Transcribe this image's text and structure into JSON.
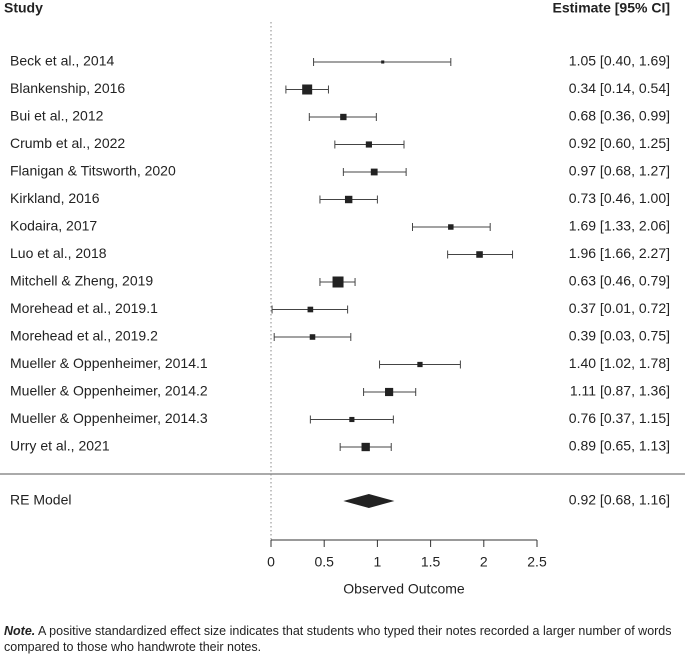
{
  "chart_data": {
    "type": "forest",
    "columns": {
      "study": "Study",
      "estimate": "Estimate [95% CI]"
    },
    "categories": [
      "Beck et al., 2014",
      "Blankenship, 2016",
      "Bui et al., 2012",
      "Crumb et al., 2022",
      "Flanigan & Titsworth, 2020",
      "Kirkland, 2016",
      "Kodaira, 2017",
      "Luo et al., 2018",
      "Mitchell & Zheng, 2019",
      "Morehead et al., 2019.1",
      "Morehead et al., 2019.2",
      "Mueller & Oppenheimer, 2014.1",
      "Mueller & Oppenheimer, 2014.2",
      "Mueller & Oppenheimer, 2014.3",
      "Urry et al., 2021"
    ],
    "values": [
      1.05,
      0.34,
      0.68,
      0.92,
      0.97,
      0.73,
      1.69,
      1.96,
      0.63,
      0.37,
      0.39,
      1.4,
      1.11,
      0.76,
      0.89
    ],
    "ci_lower": [
      0.4,
      0.14,
      0.36,
      0.6,
      0.68,
      0.46,
      1.33,
      1.66,
      0.46,
      0.01,
      0.03,
      1.02,
      0.87,
      0.37,
      0.65
    ],
    "ci_upper": [
      1.69,
      0.54,
      0.99,
      1.25,
      1.27,
      1.0,
      2.06,
      2.27,
      0.79,
      0.72,
      0.75,
      1.78,
      1.36,
      1.15,
      1.13
    ],
    "value_labels": [
      "1.05 [0.40, 1.69]",
      "0.34 [0.14, 0.54]",
      "0.68 [0.36, 0.99]",
      "0.92 [0.60, 1.25]",
      "0.97 [0.68, 1.27]",
      "0.73 [0.46, 1.00]",
      "1.69 [1.33, 2.06]",
      "1.96 [1.66, 2.27]",
      "0.63 [0.46, 0.79]",
      "0.37 [0.01, 0.72]",
      "0.39 [0.03, 0.75]",
      "1.40 [1.02, 1.78]",
      "1.11 [0.87, 1.36]",
      "0.76 [0.37, 1.15]",
      "0.89 [0.65, 1.13]"
    ],
    "summary": {
      "name": "RE Model",
      "value": 0.92,
      "ci_lower": 0.68,
      "ci_upper": 1.16,
      "value_label": "0.92 [0.68, 1.16]"
    },
    "xlabel": "Observed Outcome",
    "xlim": [
      0,
      2.5
    ],
    "xticks": [
      0,
      0.5,
      1,
      1.5,
      2,
      2.5
    ],
    "reference_line": 0,
    "color": "#222222"
  },
  "note": {
    "lead": "Note.",
    "text": "A positive standardized effect size indicates that students who typed their notes recorded a larger number of words compared to those who handwrote their notes."
  }
}
